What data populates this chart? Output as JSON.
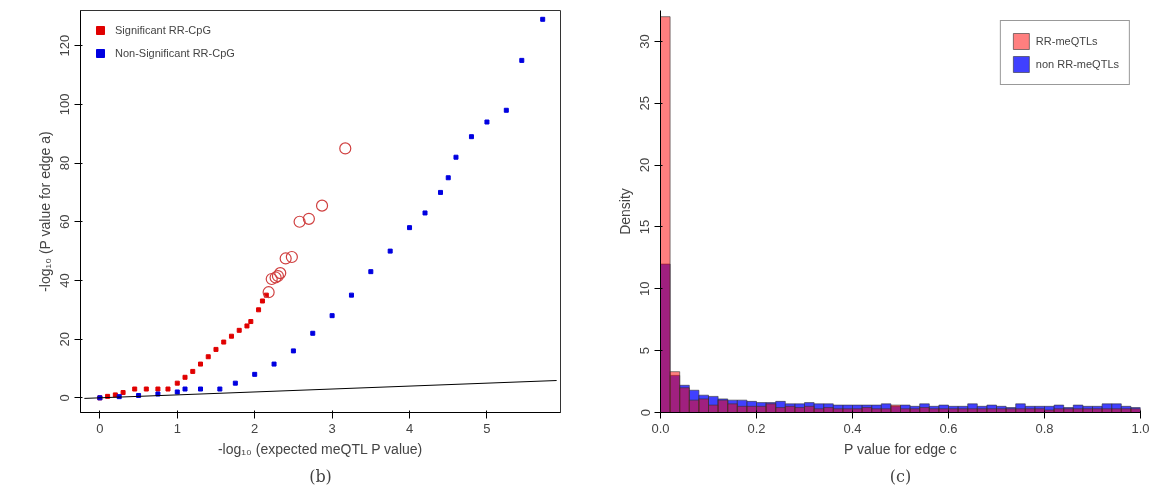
{
  "chart_data": [
    {
      "type": "scatter",
      "xlabel": "-log₁₀ (expected meQTL P value)",
      "ylabel": "-log₁₀ (P value for edge a)",
      "xlim": [
        -0.25,
        5.95
      ],
      "ylim": [
        -5,
        132
      ],
      "xticks": [
        0,
        1,
        2,
        3,
        4,
        5
      ],
      "yticks": [
        0,
        20,
        40,
        60,
        80,
        100,
        120
      ],
      "grid": false,
      "legend": "top left",
      "annotations": [
        "(b)"
      ],
      "series": [
        {
          "name": "Significant RR-CpG",
          "color": "#e00000",
          "marker": "square",
          "x": [
            0,
            0.1,
            0.2,
            0.3,
            0.45,
            0.6,
            0.75,
            0.88,
            1.0,
            1.1,
            1.2,
            1.3,
            1.4,
            1.5,
            1.6,
            1.7,
            1.8,
            1.9,
            1.95,
            2.05,
            2.1,
            2.15
          ],
          "values": [
            0,
            0.5,
            1,
            1.8,
            3,
            3,
            3,
            3,
            5,
            7,
            9,
            11.5,
            14,
            16.5,
            19,
            21,
            23,
            24.5,
            26,
            30,
            33,
            35
          ]
        },
        {
          "color": "#d04040",
          "marker": "circle",
          "x": [
            2.18,
            2.22,
            2.27,
            2.3,
            2.33,
            2.4,
            2.48,
            2.58,
            2.7,
            2.87,
            3.17
          ],
          "values": [
            36,
            40.5,
            41,
            41.5,
            42.5,
            47.5,
            48,
            60,
            61,
            65.5,
            85
          ]
        },
        {
          "name": "Non-Significant RR-CpG",
          "color": "#0000e0",
          "marker": "square",
          "x": [
            0,
            0.25,
            0.5,
            0.75,
            1.0,
            1.1,
            1.3,
            1.55,
            1.75,
            2.0,
            2.25,
            2.5,
            2.75,
            3.0,
            3.25,
            3.5,
            3.75,
            4.0,
            4.2,
            4.4,
            4.5,
            4.6,
            4.8,
            5.0,
            5.25,
            5.45,
            5.72
          ],
          "values": [
            0,
            0.4,
            0.8,
            1.3,
            2,
            3,
            3,
            3,
            5,
            8,
            11.5,
            16,
            22,
            28,
            35,
            43,
            50,
            58,
            63,
            70,
            75,
            82,
            89,
            94,
            98,
            115,
            129
          ]
        },
        {
          "type": "line",
          "color": "#000000",
          "x": [
            -0.2,
            5.9
          ],
          "values": [
            -0.2,
            5.9
          ]
        }
      ]
    },
    {
      "type": "histogram",
      "xlabel": "P value for edge c",
      "ylabel": "Density",
      "xlim": [
        0,
        1
      ],
      "ylim": [
        0,
        32.5
      ],
      "xticks": [
        {
          "value": 0,
          "label": "0.0"
        },
        0.2,
        0.4,
        0.6,
        0.8,
        {
          "value": 1,
          "label": "1.0"
        }
      ],
      "yticks": [
        0,
        5,
        10,
        15,
        20,
        25,
        30
      ],
      "grid": false,
      "legend": "top right",
      "annotations": [
        "(c)"
      ],
      "bins": [
        0,
        0.02,
        0.04,
        0.06,
        0.08,
        0.1,
        0.12,
        0.14,
        0.16,
        0.18,
        0.2,
        0.22,
        0.24,
        0.26,
        0.28,
        0.3,
        0.32,
        0.34,
        0.36,
        0.38,
        0.4,
        0.42,
        0.44,
        0.46,
        0.48,
        0.5,
        0.52,
        0.54,
        0.56,
        0.58,
        0.6,
        0.62,
        0.64,
        0.66,
        0.68,
        0.7,
        0.72,
        0.74,
        0.76,
        0.78,
        0.8,
        0.82,
        0.84,
        0.86,
        0.88,
        0.9,
        0.92,
        0.94,
        0.96,
        0.98,
        1.0
      ],
      "series": [
        {
          "name": "RR-meQTLs",
          "color": "#ff0000",
          "values": [
            32,
            3.3,
            2.0,
            1.0,
            1.1,
            0.6,
            1.0,
            0.7,
            0.5,
            0.5,
            0.5,
            0.7,
            0.4,
            0.5,
            0.4,
            0.5,
            0.3,
            0.4,
            0.3,
            0.3,
            0.3,
            0.4,
            0.3,
            0.3,
            0.6,
            0.3,
            0.3,
            0.4,
            0.3,
            0.3,
            0.3,
            0.3,
            0.3,
            0.3,
            0.3,
            0.3,
            0.3,
            0.3,
            0.3,
            0.3,
            0.2,
            0.3,
            0.3,
            0.3,
            0.3,
            0.3,
            0.3,
            0.3,
            0.3,
            0.3
          ]
        },
        {
          "name": "non RR-meQTLs",
          "color": "#0000ff",
          "values": [
            12,
            3.0,
            2.2,
            1.8,
            1.4,
            1.3,
            1.1,
            1.0,
            1.0,
            0.9,
            0.8,
            0.8,
            0.9,
            0.7,
            0.7,
            0.8,
            0.7,
            0.7,
            0.6,
            0.6,
            0.6,
            0.6,
            0.6,
            0.7,
            0.5,
            0.6,
            0.5,
            0.7,
            0.5,
            0.6,
            0.5,
            0.5,
            0.7,
            0.5,
            0.6,
            0.5,
            0.4,
            0.7,
            0.5,
            0.5,
            0.5,
            0.6,
            0.4,
            0.6,
            0.5,
            0.5,
            0.7,
            0.7,
            0.5,
            0.4
          ]
        }
      ]
    }
  ]
}
